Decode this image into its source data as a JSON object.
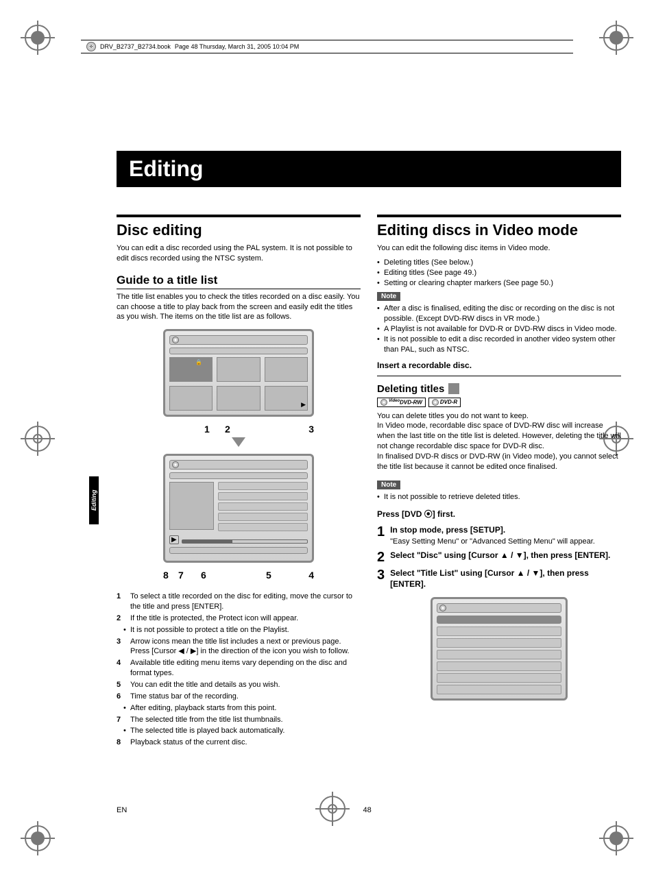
{
  "page_header": {
    "file": "DRV_B2737_B2734.book",
    "info": "Page 48  Thursday, March 31, 2005  10:04 PM"
  },
  "section_title": "Editing",
  "side_tab": "Editing",
  "left": {
    "h1": "Disc editing",
    "intro": "You can edit a disc recorded using the PAL system. It is not possible to edit discs recorded using the NTSC system.",
    "h2": "Guide to a title list",
    "guide_intro": "The title list enables you to check the titles recorded on a disc easily. You can choose a title to play back from the screen and easily edit the titles as you wish. The items on the title list are as follows.",
    "labels_top": {
      "l1": "1",
      "l2": "2",
      "l3": "3"
    },
    "labels_bot": {
      "l8": "8",
      "l7": "7",
      "l6": "6",
      "l5": "5",
      "l4": "4"
    },
    "guide_items": [
      {
        "n": "1",
        "t": "To select a title recorded on the disc for editing, move the cursor to the title and press [ENTER]."
      },
      {
        "n": "2",
        "t": "If the title is protected, the Protect icon will appear."
      },
      {
        "sub": "It is not possible to protect a title on the Playlist."
      },
      {
        "n": "3",
        "t": "Arrow icons mean the title list includes a next or previous page. Press [Cursor ◀ / ▶] in the direction of the icon you wish to follow."
      },
      {
        "n": "4",
        "t": "Available title editing menu items vary depending on the disc and format types."
      },
      {
        "n": "5",
        "t": "You can edit the title and details as you wish."
      },
      {
        "n": "6",
        "t": "Time status bar of the recording."
      },
      {
        "sub": "After editing, playback starts from this point."
      },
      {
        "n": "7",
        "t": "The selected title from the title list thumbnails."
      },
      {
        "sub": "The selected title is played back automatically."
      },
      {
        "n": "8",
        "t": "Playback status of the current disc."
      }
    ]
  },
  "right": {
    "h1": "Editing discs in Video mode",
    "intro": "You can edit the following disc items in Video mode.",
    "intro_bullets": [
      "Deleting titles (See below.)",
      "Editing titles (See page 49.)",
      "Setting or clearing chapter markers (See page 50.)"
    ],
    "note_label": "Note",
    "note1_bullets": [
      "After a disc is finalised, editing the disc or recording on the disc is not possible. (Except DVD-RW discs in VR mode.)",
      "A Playlist is not available for DVD-R or DVD-RW discs in Video mode.",
      "It is not possible to edit a disc recorded in another video system other than PAL, such as NTSC."
    ],
    "insert_line": "Insert a recordable disc.",
    "h3_deleting": "Deleting titles",
    "badge1": "DVD-RW",
    "badge1_sup": "Video",
    "badge2": "DVD-R",
    "deleting_body": "You can delete titles you do not want to keep.\nIn Video mode, recordable disc space of DVD-RW disc will increase when the last title on the title list is deleted. However, deleting the title will not change recordable disc space for DVD-R disc.\nIn finalised DVD-R discs or DVD-RW (in Video mode), you cannot select the title list because it cannot be edited once finalised.",
    "note2_bullet": "It is not possible to retrieve deleted titles.",
    "press_dvd": "Press [DVD ⦿] first.",
    "steps": [
      {
        "n": "1",
        "title": "In stop mode, press [SETUP].",
        "desc": "\"Easy Setting Menu\" or \"Advanced Setting Menu\" will appear."
      },
      {
        "n": "2",
        "title": "Select \"Disc\" using [Cursor ▲ / ▼], then press [ENTER].",
        "desc": ""
      },
      {
        "n": "3",
        "title": "Select \"Title List\" using [Cursor ▲ / ▼], then press [ENTER].",
        "desc": ""
      }
    ]
  },
  "footer": {
    "lang": "EN",
    "page": "48"
  },
  "colors": {
    "black": "#000000",
    "gray": "#888888"
  }
}
